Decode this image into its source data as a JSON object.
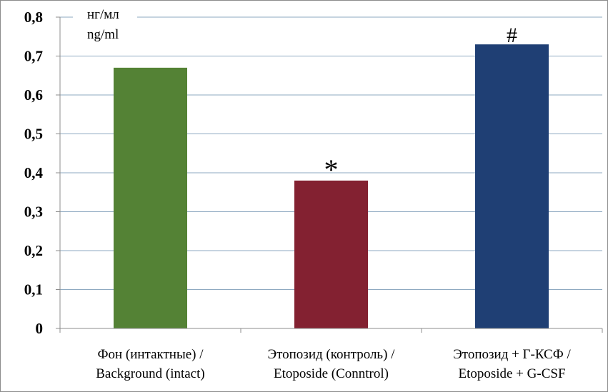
{
  "chart_data": {
    "type": "bar",
    "title": "",
    "xlabel": "",
    "ylabel": "",
    "unit_label": [
      "нг/мл",
      "ng/ml"
    ],
    "categories": [
      [
        "Фон (интактные) /",
        "Background (intact)"
      ],
      [
        "Этопозид (контроль) /",
        "Etoposide (Conntrol)"
      ],
      [
        "Этопозид + Г-КСФ /",
        "Etoposide + G-CSF"
      ]
    ],
    "values": [
      0.67,
      0.38,
      0.73
    ],
    "bar_colors": [
      "#548235",
      "#832131",
      "#1f3f74"
    ],
    "annotations": [
      "",
      "*",
      "#"
    ],
    "ylim": [
      0,
      0.8
    ],
    "yticks": [
      0,
      0.1,
      0.2,
      0.3,
      0.4,
      0.5,
      0.6,
      0.7,
      0.8
    ],
    "ytick_labels": [
      "0",
      "0,1",
      "0,2",
      "0,3",
      "0,4",
      "0,5",
      "0,6",
      "0,7",
      "0,8"
    ],
    "grid": true,
    "legend": "none"
  }
}
